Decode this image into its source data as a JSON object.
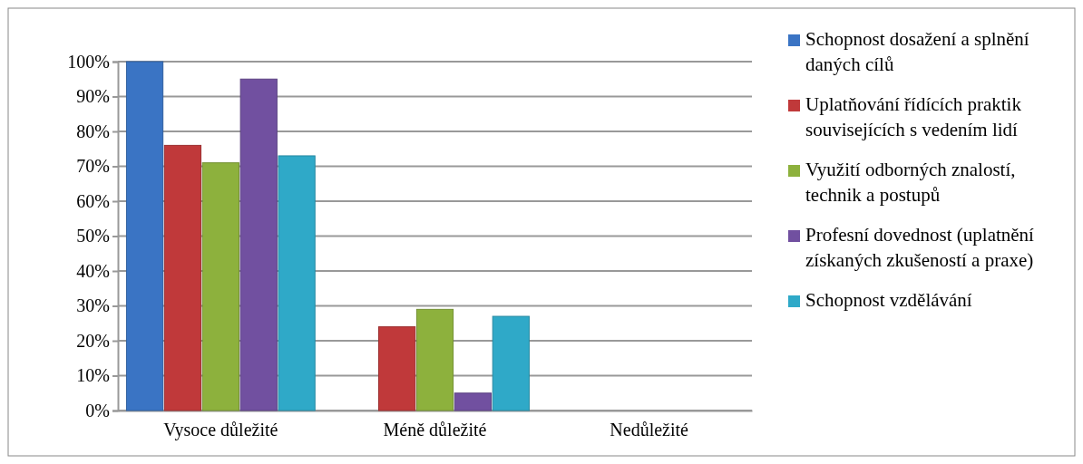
{
  "chart_data": {
    "type": "bar",
    "categories": [
      "Vysoce důležité",
      "Méně důležité",
      "Nedůležité"
    ],
    "series": [
      {
        "name": "Schopnost dosažení a splnění daných cílů",
        "color": "#3a74c4",
        "values": [
          100,
          0,
          0
        ]
      },
      {
        "name": "Uplatňování řídících praktik souvisejících s vedením lidí",
        "color": "#c0393a",
        "values": [
          76,
          24,
          0
        ]
      },
      {
        "name": "Využití odborných znalostí, technik a postupů",
        "color": "#8db13d",
        "values": [
          71,
          29,
          0
        ]
      },
      {
        "name": "Profesní dovednost (uplatnění získaných zkušeností a praxe)",
        "color": "#7150a0",
        "values": [
          95,
          5,
          0
        ]
      },
      {
        "name": "Schopnost vzdělávání",
        "color": "#2fa9c8",
        "values": [
          73,
          27,
          0
        ]
      }
    ],
    "ylim": [
      0,
      100
    ],
    "yticks": [
      {
        "value": 0,
        "label": "0%"
      },
      {
        "value": 10,
        "label": "10%"
      },
      {
        "value": 20,
        "label": "20%"
      },
      {
        "value": 30,
        "label": "30%"
      },
      {
        "value": 40,
        "label": "40%"
      },
      {
        "value": 50,
        "label": "50%"
      },
      {
        "value": 60,
        "label": "60%"
      },
      {
        "value": 70,
        "label": "70%"
      },
      {
        "value": 80,
        "label": "80%"
      },
      {
        "value": 90,
        "label": "90%"
      },
      {
        "value": 100,
        "label": "100%"
      }
    ],
    "grid": "y",
    "legend": "right"
  }
}
